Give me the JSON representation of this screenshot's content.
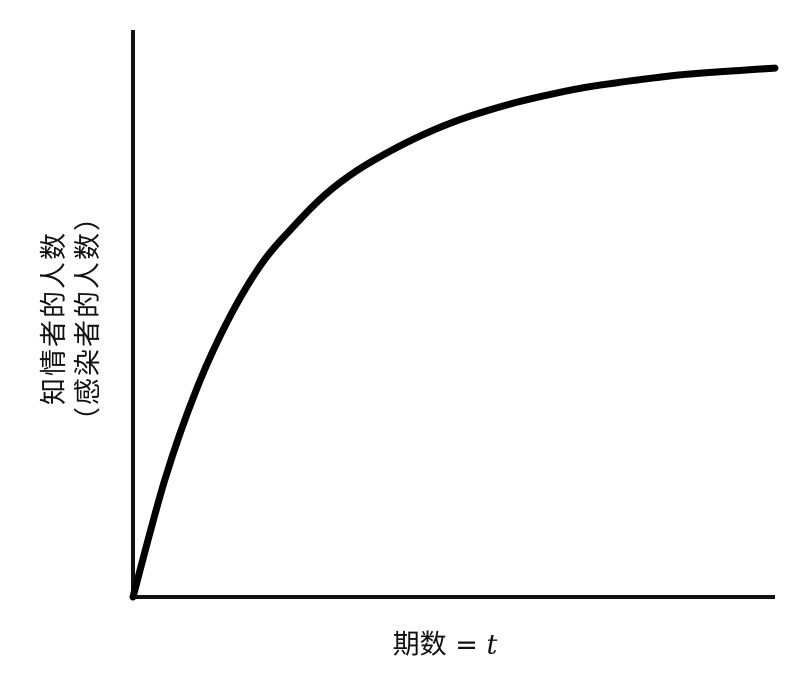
{
  "chart_data": {
    "type": "line",
    "title": "",
    "xlabel": "期数 = t",
    "xlabel_parts": {
      "text": "期数 = ",
      "variable": "t"
    },
    "ylabel": [
      "知情者的人数",
      "（感染者的人数）"
    ],
    "ticks_visible": false,
    "grid": false,
    "legend": "none",
    "xlim": [
      0,
      10
    ],
    "ylim": [
      0,
      10
    ],
    "series": [
      {
        "color": "#000000",
        "x": [
          0,
          0.5,
          1,
          1.5,
          2,
          2.5,
          3,
          3.5,
          4,
          4.5,
          5,
          5.5,
          6,
          6.5,
          7,
          7.5,
          8,
          8.5,
          9,
          9.5,
          10
        ],
        "y": [
          0,
          2.2,
          3.9,
          5.2,
          6.2,
          6.9,
          7.5,
          7.95,
          8.3,
          8.6,
          8.85,
          9.05,
          9.22,
          9.36,
          9.48,
          9.57,
          9.65,
          9.72,
          9.77,
          9.81,
          9.85
        ]
      }
    ],
    "axis_color": "#111111"
  }
}
